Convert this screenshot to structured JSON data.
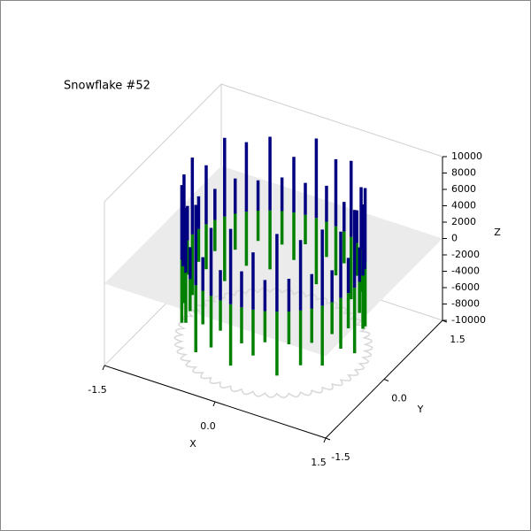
{
  "chart_data": {
    "type": "ring3d",
    "title": "Snowflake #52",
    "xlabel": "X",
    "ylabel": "Y",
    "zlabel": "Z",
    "xlim": [
      -1.5,
      1.5
    ],
    "ylim": [
      -1.5,
      1.5
    ],
    "zlim": [
      -10000,
      10000
    ],
    "xticks": [
      -1.5,
      {
        "value": 0,
        "label": "0.0"
      },
      1.5
    ],
    "yticks": [
      -1.5,
      {
        "value": 0,
        "label": "0.0"
      },
      1.5
    ],
    "zticks": [
      -10000,
      -8000,
      -6000,
      -4000,
      -2000,
      0,
      2000,
      4000,
      6000,
      8000,
      10000
    ],
    "top_color": "#000080",
    "bottom_color": "#008000",
    "plane_color": "#ebebeb",
    "top": [
      9500,
      4200,
      8700,
      3800,
      9100,
      4500,
      7600,
      4000,
      9300,
      3600,
      8200,
      4400,
      9700,
      3900,
      6800,
      4100,
      9000,
      3700,
      8500,
      4300,
      9600,
      3800,
      7200,
      4000,
      9400,
      4200,
      8800,
      3600,
      9100,
      4500,
      7900,
      3900,
      9800,
      4100,
      8300,
      3700,
      9200,
      4400,
      7000,
      3800,
      9500,
      4000,
      8600,
      4200,
      9300,
      3900,
      8100,
      4300
    ],
    "bottom": [
      -8000,
      -3800,
      -6500,
      -4200,
      -7800,
      -3500,
      -5200,
      -4000,
      -7600,
      -3900,
      -6000,
      -4300,
      -8100,
      -3600,
      -5800,
      -4100,
      -7200,
      -3700,
      -6600,
      -4400,
      -7900,
      -3800,
      -5500,
      -4000,
      -7400,
      -4200,
      -6900,
      -3600,
      -7700,
      -4500,
      -6100,
      -3900,
      -8200,
      -4100,
      -6300,
      -3700,
      -7500,
      -4400,
      -5600,
      -3800,
      -7800,
      -4000,
      -6700,
      -4200,
      -7300,
      -3900,
      -6200,
      -4300
    ]
  }
}
